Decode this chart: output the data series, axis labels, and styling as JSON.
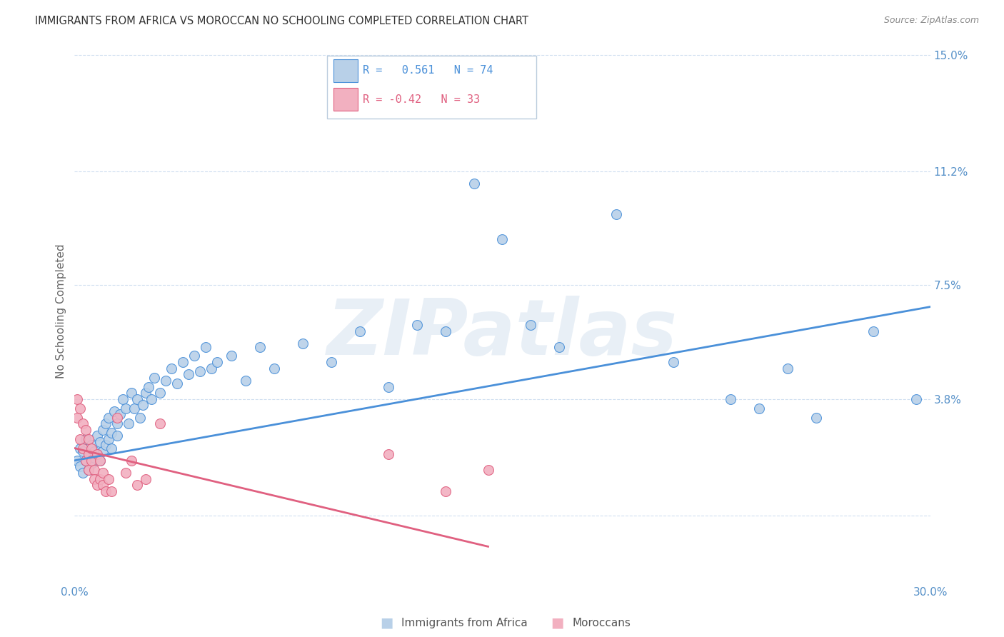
{
  "title": "IMMIGRANTS FROM AFRICA VS MOROCCAN NO SCHOOLING COMPLETED CORRELATION CHART",
  "source": "Source: ZipAtlas.com",
  "ylabel": "No Schooling Completed",
  "watermark": "ZIPatlas",
  "xlim": [
    0.0,
    0.3
  ],
  "ylim": [
    -0.022,
    0.155
  ],
  "yticks": [
    0.0,
    0.038,
    0.075,
    0.112,
    0.15
  ],
  "ytick_labels": [
    "",
    "3.8%",
    "7.5%",
    "11.2%",
    "15.0%"
  ],
  "xticks": [
    0.0,
    0.05,
    0.1,
    0.15,
    0.2,
    0.25,
    0.3
  ],
  "xtick_labels": [
    "0.0%",
    "",
    "",
    "",
    "",
    "",
    "30.0%"
  ],
  "blue_R": 0.561,
  "blue_N": 74,
  "pink_R": -0.42,
  "pink_N": 33,
  "blue_color": "#b8d0e8",
  "pink_color": "#f2b0c0",
  "blue_line_color": "#4a90d9",
  "pink_line_color": "#e06080",
  "title_color": "#333333",
  "axis_color": "#5590c8",
  "grid_color": "#d0dff0",
  "blue_points_x": [
    0.001,
    0.002,
    0.002,
    0.003,
    0.003,
    0.004,
    0.004,
    0.005,
    0.005,
    0.006,
    0.006,
    0.007,
    0.007,
    0.008,
    0.008,
    0.009,
    0.009,
    0.01,
    0.01,
    0.011,
    0.011,
    0.012,
    0.012,
    0.013,
    0.013,
    0.014,
    0.015,
    0.015,
    0.016,
    0.017,
    0.018,
    0.019,
    0.02,
    0.021,
    0.022,
    0.023,
    0.024,
    0.025,
    0.026,
    0.027,
    0.028,
    0.03,
    0.032,
    0.034,
    0.036,
    0.038,
    0.04,
    0.042,
    0.044,
    0.046,
    0.048,
    0.05,
    0.055,
    0.06,
    0.065,
    0.07,
    0.08,
    0.09,
    0.1,
    0.11,
    0.12,
    0.13,
    0.14,
    0.15,
    0.16,
    0.17,
    0.19,
    0.21,
    0.23,
    0.24,
    0.25,
    0.26,
    0.28,
    0.295
  ],
  "blue_points_y": [
    0.018,
    0.022,
    0.016,
    0.021,
    0.014,
    0.025,
    0.018,
    0.02,
    0.015,
    0.023,
    0.017,
    0.021,
    0.019,
    0.026,
    0.02,
    0.024,
    0.018,
    0.028,
    0.021,
    0.03,
    0.023,
    0.032,
    0.025,
    0.027,
    0.022,
    0.034,
    0.03,
    0.026,
    0.033,
    0.038,
    0.035,
    0.03,
    0.04,
    0.035,
    0.038,
    0.032,
    0.036,
    0.04,
    0.042,
    0.038,
    0.045,
    0.04,
    0.044,
    0.048,
    0.043,
    0.05,
    0.046,
    0.052,
    0.047,
    0.055,
    0.048,
    0.05,
    0.052,
    0.044,
    0.055,
    0.048,
    0.056,
    0.05,
    0.06,
    0.042,
    0.062,
    0.06,
    0.108,
    0.09,
    0.062,
    0.055,
    0.098,
    0.05,
    0.038,
    0.035,
    0.048,
    0.032,
    0.06,
    0.038
  ],
  "pink_points_x": [
    0.001,
    0.001,
    0.002,
    0.002,
    0.003,
    0.003,
    0.004,
    0.004,
    0.005,
    0.005,
    0.005,
    0.006,
    0.006,
    0.007,
    0.007,
    0.008,
    0.008,
    0.009,
    0.009,
    0.01,
    0.01,
    0.011,
    0.012,
    0.013,
    0.015,
    0.018,
    0.02,
    0.022,
    0.025,
    0.03,
    0.11,
    0.13,
    0.145
  ],
  "pink_points_y": [
    0.032,
    0.038,
    0.035,
    0.025,
    0.03,
    0.022,
    0.028,
    0.018,
    0.02,
    0.025,
    0.015,
    0.018,
    0.022,
    0.015,
    0.012,
    0.01,
    0.02,
    0.012,
    0.018,
    0.014,
    0.01,
    0.008,
    0.012,
    0.008,
    0.032,
    0.014,
    0.018,
    0.01,
    0.012,
    0.03,
    0.02,
    0.008,
    0.015
  ],
  "blue_trend_x": [
    0.0,
    0.3
  ],
  "blue_trend_y": [
    0.018,
    0.068
  ],
  "pink_trend_x": [
    0.0,
    0.145
  ],
  "pink_trend_y": [
    0.022,
    -0.01
  ],
  "legend_label1": "Immigrants from Africa",
  "legend_label2": "Moroccans"
}
